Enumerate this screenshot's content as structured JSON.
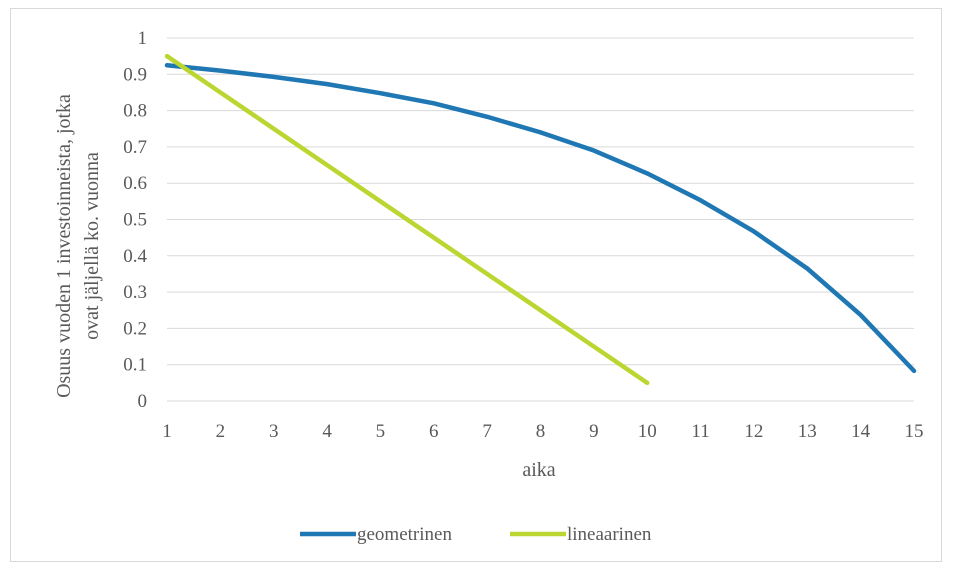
{
  "chart_data": {
    "type": "line",
    "title": "",
    "xlabel": "aika",
    "ylabel_line1": "Osuus vuoden 1 investoinneista, jotka",
    "ylabel_line2": "ovat jäljellä ko. vuonna",
    "x": [
      1,
      2,
      3,
      4,
      5,
      6,
      7,
      8,
      9,
      10,
      11,
      12,
      13,
      14,
      15
    ],
    "xlim": [
      1,
      15
    ],
    "ylim": [
      0,
      1
    ],
    "ytick_values": [
      0,
      0.1,
      0.2,
      0.3,
      0.4,
      0.5,
      0.6,
      0.7,
      0.8,
      0.9,
      1
    ],
    "ytick_labels": [
      "0",
      "0.1",
      "0.2",
      "0.3",
      "0.4",
      "0.5",
      "0.6",
      "0.7",
      "0.8",
      "0.9",
      "1"
    ],
    "xtick_labels": [
      "1",
      "2",
      "3",
      "4",
      "5",
      "6",
      "7",
      "8",
      "9",
      "10",
      "11",
      "12",
      "13",
      "14",
      "15"
    ],
    "grid": "horizontal",
    "legend_position": "bottom",
    "series": [
      {
        "name": "geometrinen",
        "color": "#1f77b4",
        "values": [
          0.925,
          0.91,
          0.893,
          0.873,
          0.848,
          0.82,
          0.783,
          0.74,
          0.69,
          0.627,
          0.553,
          0.467,
          0.365,
          0.237,
          0.083
        ]
      },
      {
        "name": "lineaarinen",
        "color": "#bcd631",
        "values": [
          0.95,
          0.85,
          0.75,
          0.65,
          0.55,
          0.45,
          0.35,
          0.25,
          0.15,
          0.05,
          null,
          null,
          null,
          null,
          null
        ]
      }
    ]
  }
}
